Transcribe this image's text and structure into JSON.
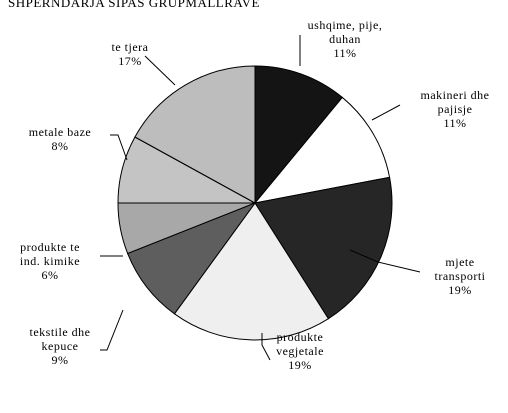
{
  "chart_data": {
    "type": "pie",
    "title": "SHPERNDARJA SIPAS GRUPMALLRAVE",
    "categories": [
      "ushqime, pije,\nduhan",
      "makineri dhe\npajisje",
      "mjete\ntransporti",
      "produkte\nvegjetale",
      "tekstile dhe\nkepuce",
      "produkte te\nind. kimike",
      "metale baze",
      "te tjera"
    ],
    "values": [
      11,
      11,
      19,
      19,
      9,
      6,
      8,
      17
    ],
    "value_labels": [
      "11%",
      "11%",
      "19%",
      "19%",
      "9%",
      "6%",
      "8%",
      "17%"
    ],
    "colors": [
      "#141414",
      "#ffffff",
      "#262626",
      "#efefef",
      "#5e5e5e",
      "#a8a8a8",
      "#c4c4c4",
      "#bdbdbd"
    ]
  }
}
